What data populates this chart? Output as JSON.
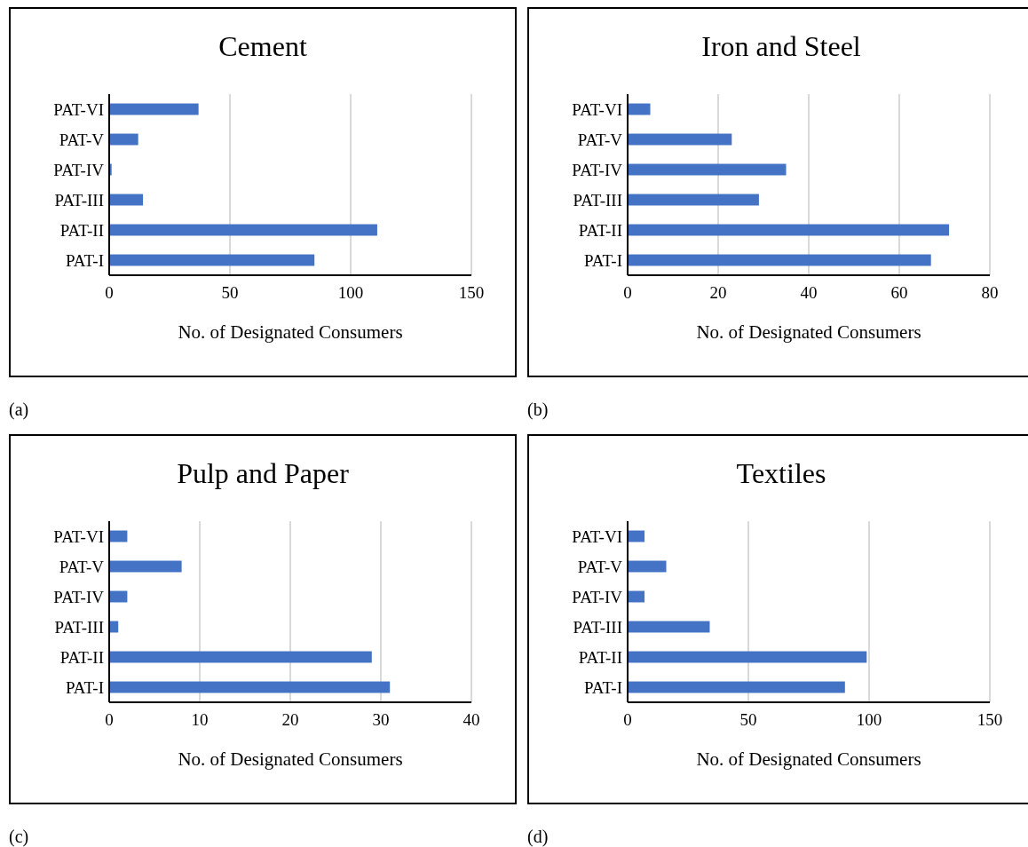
{
  "chart_data": [
    {
      "type": "bar",
      "orientation": "horizontal",
      "title": "Cement",
      "xlabel": "No. of Designated Consumers",
      "categories": [
        "PAT-VI",
        "PAT-V",
        "PAT-IV",
        "PAT-III",
        "PAT-II",
        "PAT-I"
      ],
      "values": [
        37,
        12,
        1,
        14,
        111,
        85
      ],
      "color": "#4472c4",
      "xlim": [
        0,
        150
      ],
      "xticks": [
        0,
        50,
        100,
        150
      ],
      "grid": "x",
      "annotations": [
        "(a)"
      ]
    },
    {
      "type": "bar",
      "orientation": "horizontal",
      "title": "Iron and Steel",
      "xlabel": "No. of Designated Consumers",
      "categories": [
        "PAT-VI",
        "PAT-V",
        "PAT-IV",
        "PAT-III",
        "PAT-II",
        "PAT-I"
      ],
      "values": [
        5,
        23,
        35,
        29,
        71,
        67
      ],
      "color": "#4472c4",
      "xlim": [
        0,
        80
      ],
      "xticks": [
        0,
        20,
        40,
        60,
        80
      ],
      "grid": "x",
      "annotations": [
        "(b)"
      ]
    },
    {
      "type": "bar",
      "orientation": "horizontal",
      "title": "Pulp and Paper",
      "xlabel": "No. of Designated Consumers",
      "categories": [
        "PAT-VI",
        "PAT-V",
        "PAT-IV",
        "PAT-III",
        "PAT-II",
        "PAT-I"
      ],
      "values": [
        2,
        8,
        2,
        1,
        29,
        31
      ],
      "color": "#4472c4",
      "xlim": [
        0,
        40
      ],
      "xticks": [
        0,
        10,
        20,
        30,
        40
      ],
      "grid": "x",
      "annotations": [
        "(c)"
      ]
    },
    {
      "type": "bar",
      "orientation": "horizontal",
      "title": "Textiles",
      "xlabel": "No. of Designated Consumers",
      "categories": [
        "PAT-VI",
        "PAT-V",
        "PAT-IV",
        "PAT-III",
        "PAT-II",
        "PAT-I"
      ],
      "values": [
        7,
        16,
        7,
        34,
        99,
        90
      ],
      "color": "#4472c4",
      "xlim": [
        0,
        150
      ],
      "xticks": [
        0,
        50,
        100,
        150
      ],
      "grid": "x",
      "annotations": [
        "(d)"
      ]
    }
  ]
}
